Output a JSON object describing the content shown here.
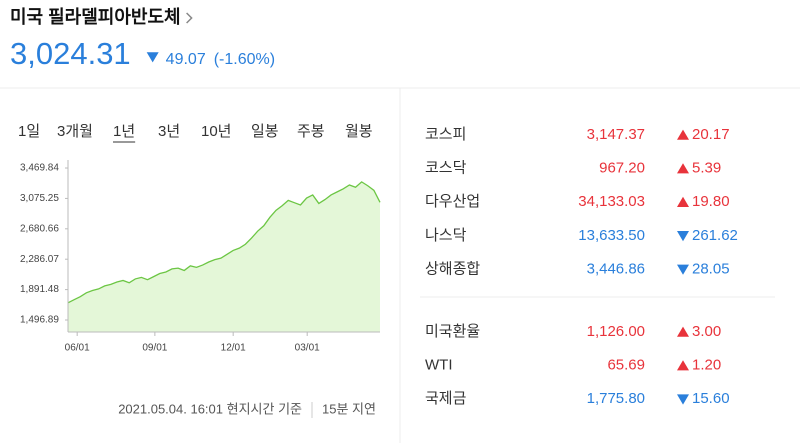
{
  "header": {
    "title": "미국 필라델피아반도체",
    "price": "3,024.31",
    "change": "49.07",
    "change_percent": "(-1.60%)",
    "direction": "down"
  },
  "tabs": {
    "items": [
      "1일",
      "3개월",
      "1년",
      "3년",
      "10년",
      "일봉",
      "주봉",
      "월봉"
    ],
    "selected": 2
  },
  "chart_data": {
    "type": "area",
    "color": "#6cc644",
    "fill": "#e4f7d8",
    "values": [
      1720,
      1760,
      1800,
      1850,
      1880,
      1900,
      1940,
      1960,
      1990,
      2010,
      1980,
      2030,
      2050,
      2020,
      2060,
      2100,
      2120,
      2160,
      2170,
      2140,
      2200,
      2180,
      2210,
      2250,
      2280,
      2300,
      2350,
      2400,
      2430,
      2480,
      2560,
      2650,
      2720,
      2830,
      2920,
      2980,
      3050,
      3020,
      2990,
      3080,
      3120,
      3010,
      3060,
      3120,
      3160,
      3200,
      3250,
      3220,
      3290,
      3240,
      3180,
      3024.31
    ],
    "xlim": [
      0,
      51
    ],
    "xticks": [
      {
        "value": 1.5,
        "label": "06/01"
      },
      {
        "value": 14.2,
        "label": "09/01"
      },
      {
        "value": 27,
        "label": "12/01"
      },
      {
        "value": 39.1,
        "label": "03/01"
      }
    ],
    "ylim": [
      1341,
      3574
    ],
    "yticks": [
      {
        "value": 1496.89,
        "label": "1,496.89"
      },
      {
        "value": 1891.48,
        "label": "1,891.48"
      },
      {
        "value": 2286.07,
        "label": "2,286.07"
      },
      {
        "value": 2680.66,
        "label": "2,680.66"
      },
      {
        "value": 3075.25,
        "label": "3,075.25"
      },
      {
        "value": 3469.84,
        "label": "3,469.84"
      }
    ]
  },
  "footer": {
    "timestamp": "2021.05.04. 16:01 현지시간 기준",
    "delay": "15분 지연"
  },
  "indices": [
    {
      "name": "코스피",
      "value": "3,147.37",
      "change": "20.17",
      "direction": "up"
    },
    {
      "name": "코스닥",
      "value": "967.20",
      "change": "5.39",
      "direction": "up"
    },
    {
      "name": "다우산업",
      "value": "34,133.03",
      "change": "19.80",
      "direction": "up"
    },
    {
      "name": "나스닥",
      "value": "13,633.50",
      "change": "261.62",
      "direction": "down"
    },
    {
      "name": "상해종합",
      "value": "3,446.86",
      "change": "28.05",
      "direction": "down"
    }
  ],
  "others": [
    {
      "name": "미국환율",
      "value": "1,126.00",
      "change": "3.00",
      "direction": "up"
    },
    {
      "name": "WTI",
      "value": "65.69",
      "change": "1.20",
      "direction": "up"
    },
    {
      "name": "국제금",
      "value": "1,775.80",
      "change": "15.60",
      "direction": "down"
    }
  ]
}
